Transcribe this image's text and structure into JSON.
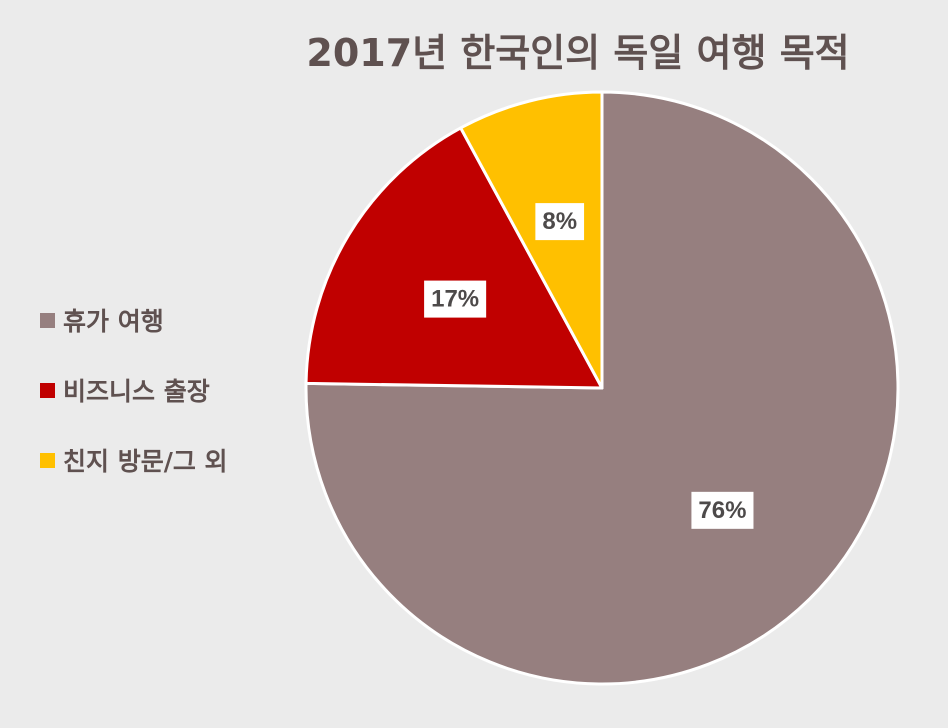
{
  "chart_data": {
    "type": "pie",
    "title": "2017년 한국인의 독일 여행 목적",
    "slices": [
      {
        "label": "휴가 여행",
        "value": 76,
        "display": "76%",
        "color": "#967f7f"
      },
      {
        "label": "비즈니스 출장",
        "value": 17,
        "display": "17%",
        "color": "#c00000"
      },
      {
        "label": "친지 방문/그 외",
        "value": 8,
        "display": "8%",
        "color": "#ffc000"
      }
    ],
    "legend_position": "left"
  },
  "colors": {
    "background": "#ebebeb",
    "title": "#5f5150",
    "slice_border": "#ffffff"
  }
}
